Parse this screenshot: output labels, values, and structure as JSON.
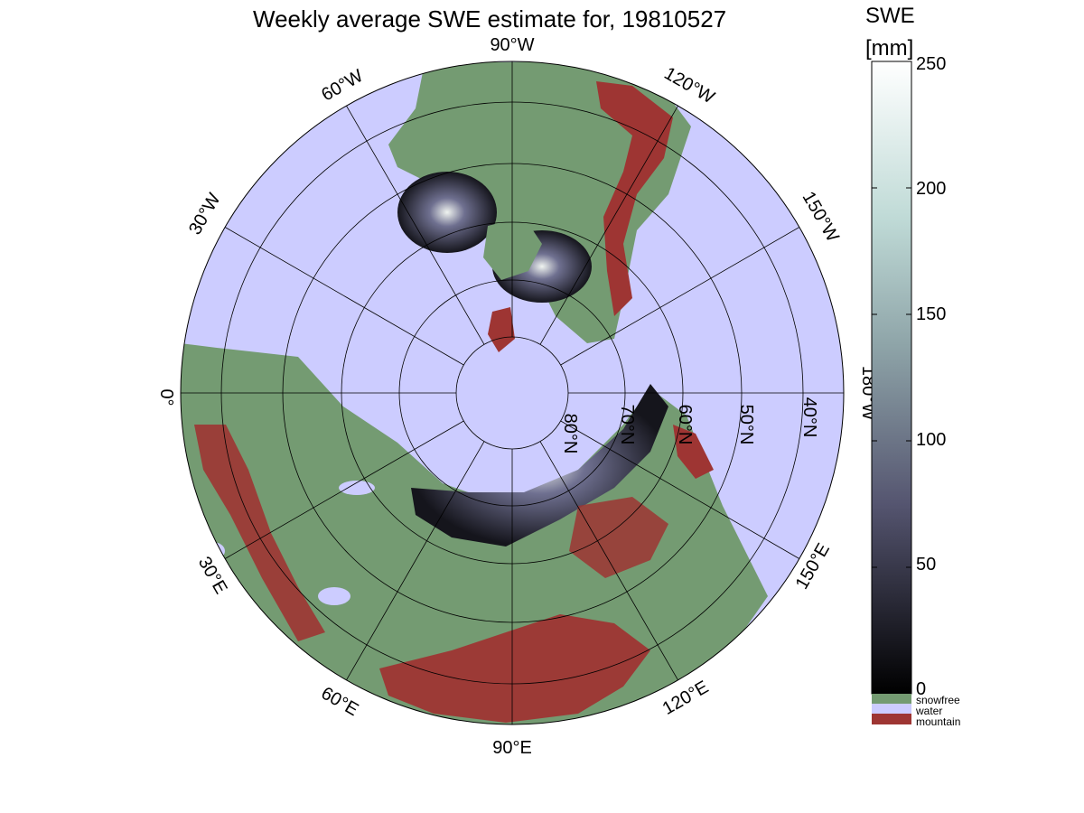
{
  "title": "Weekly average SWE estimate for, 19810527",
  "colorbar": {
    "title": "SWE",
    "unit": "[mm]",
    "ticks": [
      "250",
      "200",
      "150",
      "100",
      "50",
      "0"
    ],
    "categories": [
      {
        "name": "snowfree",
        "color": "#749b72"
      },
      {
        "name": "water",
        "color": "#ccccff"
      },
      {
        "name": "mountain",
        "color": "#9e3533"
      }
    ]
  },
  "colors": {
    "ocean": "#ccccff",
    "land": "#749b72",
    "mountain": "#9e3533",
    "grid": "#000000"
  },
  "map": {
    "projection": "polar stereographic (north)",
    "meridian_labels": [
      "90°W",
      "120°W",
      "150°W",
      "180°W",
      "150°E",
      "120°E",
      "90°E",
      "60°E",
      "30°E",
      "0°",
      "30°W",
      "60°W"
    ],
    "parallel_labels": [
      "80°N",
      "70°N",
      "60°N",
      "50°N",
      "40°N"
    ]
  }
}
